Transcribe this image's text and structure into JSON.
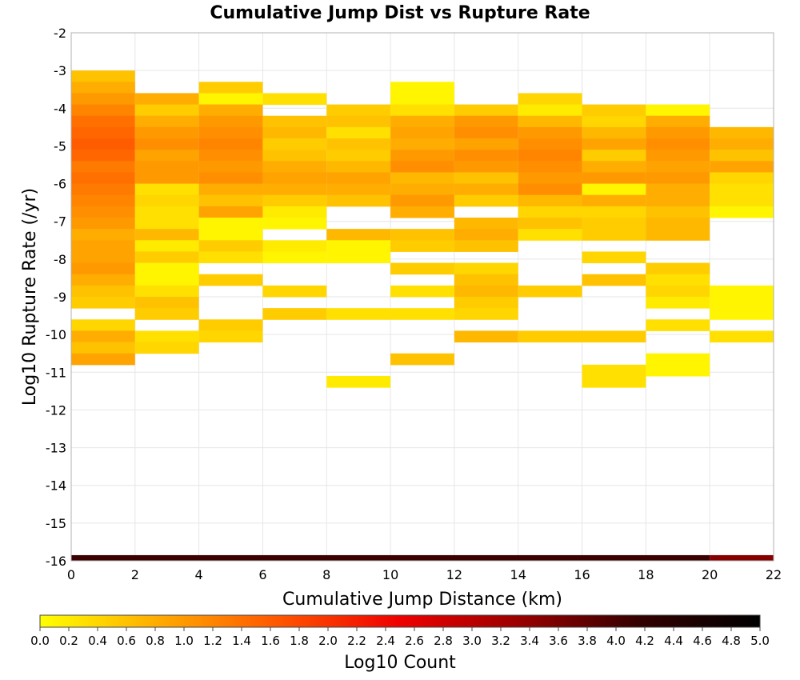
{
  "chart_data": {
    "type": "heatmap",
    "title": "Cumulative Jump Dist vs Rupture Rate",
    "xlabel": "Cumulative Jump Distance (km)",
    "ylabel": "Log10 Rupture Rate (/yr)",
    "xlim": [
      0,
      22
    ],
    "ylim": [
      -16,
      -2
    ],
    "x_ticks": [
      0,
      2,
      4,
      6,
      8,
      10,
      12,
      14,
      16,
      18,
      20,
      22
    ],
    "y_ticks": [
      -2,
      -3,
      -4,
      -5,
      -6,
      -7,
      -8,
      -9,
      -10,
      -11,
      -12,
      -13,
      -14,
      -15,
      -16
    ],
    "x_bin_width": 2,
    "y_bin_height": 0.3,
    "grid": true,
    "colorbar": {
      "label": "Log10 Count",
      "range": [
        0,
        5
      ],
      "ticks": [
        "0.0",
        "0.2",
        "0.4",
        "0.6",
        "0.8",
        "1.0",
        "1.2",
        "1.4",
        "1.6",
        "1.8",
        "2.0",
        "2.2",
        "2.4",
        "2.6",
        "2.8",
        "3.0",
        "3.2",
        "3.4",
        "3.6",
        "3.8",
        "4.0",
        "4.2",
        "4.4",
        "4.6",
        "4.8",
        "5.0"
      ],
      "palette": [
        "#ffff00",
        "#ffaa00",
        "#ff5500",
        "#ee0000",
        "#990000",
        "#330000",
        "#000000"
      ]
    },
    "columns": [
      {
        "x": 0,
        "cells": [
          [
            -3.0,
            0.6
          ],
          [
            -3.3,
            0.8
          ],
          [
            -3.6,
            1.0
          ],
          [
            -3.9,
            1.2
          ],
          [
            -4.2,
            1.4
          ],
          [
            -4.5,
            1.5
          ],
          [
            -4.8,
            1.6
          ],
          [
            -5.1,
            1.5
          ],
          [
            -5.4,
            1.3
          ],
          [
            -5.7,
            1.4
          ],
          [
            -6.0,
            1.3
          ],
          [
            -6.3,
            1.2
          ],
          [
            -6.6,
            1.1
          ],
          [
            -6.9,
            1.0
          ],
          [
            -7.2,
            0.8
          ],
          [
            -7.5,
            0.9
          ],
          [
            -7.8,
            0.9
          ],
          [
            -8.1,
            1.0
          ],
          [
            -8.4,
            0.8
          ],
          [
            -8.7,
            0.6
          ],
          [
            -9.0,
            0.5
          ],
          [
            -9.6,
            0.4
          ],
          [
            -9.9,
            0.8
          ],
          [
            -10.2,
            0.6
          ],
          [
            -10.5,
            0.9
          ]
        ]
      },
      {
        "x": 2,
        "cells": [
          [
            -3.6,
            0.8
          ],
          [
            -3.9,
            0.5
          ],
          [
            -4.2,
            0.8
          ],
          [
            -4.5,
            1.0
          ],
          [
            -4.8,
            1.1
          ],
          [
            -5.1,
            0.9
          ],
          [
            -5.4,
            1.0
          ],
          [
            -5.7,
            1.0
          ],
          [
            -6.0,
            0.3
          ],
          [
            -6.3,
            0.4
          ],
          [
            -6.6,
            0.3
          ],
          [
            -6.9,
            0.3
          ],
          [
            -7.2,
            0.7
          ],
          [
            -7.5,
            0.2
          ],
          [
            -7.8,
            0.5
          ],
          [
            -8.1,
            0.1
          ],
          [
            -8.4,
            0.1
          ],
          [
            -8.7,
            0.3
          ],
          [
            -9.0,
            0.6
          ],
          [
            -9.3,
            0.5
          ],
          [
            -9.9,
            0.3
          ],
          [
            -10.2,
            0.4
          ]
        ]
      },
      {
        "x": 4,
        "cells": [
          [
            -3.3,
            0.5
          ],
          [
            -3.6,
            0.1
          ],
          [
            -3.9,
            0.8
          ],
          [
            -4.2,
            1.0
          ],
          [
            -4.5,
            1.1
          ],
          [
            -4.8,
            1.2
          ],
          [
            -5.1,
            1.1
          ],
          [
            -5.4,
            1.0
          ],
          [
            -5.7,
            1.1
          ],
          [
            -6.0,
            0.8
          ],
          [
            -6.3,
            0.6
          ],
          [
            -6.6,
            0.9
          ],
          [
            -6.9,
            0.1
          ],
          [
            -7.2,
            0.1
          ],
          [
            -7.5,
            0.5
          ],
          [
            -7.8,
            0.3
          ],
          [
            -8.4,
            0.5
          ],
          [
            -9.6,
            0.5
          ],
          [
            -9.9,
            0.4
          ]
        ]
      },
      {
        "x": 6,
        "cells": [
          [
            -3.6,
            0.3
          ],
          [
            -4.2,
            0.6
          ],
          [
            -4.5,
            0.7
          ],
          [
            -4.8,
            0.5
          ],
          [
            -5.1,
            0.6
          ],
          [
            -5.4,
            0.8
          ],
          [
            -5.7,
            0.9
          ],
          [
            -6.0,
            0.8
          ],
          [
            -6.3,
            0.5
          ],
          [
            -6.6,
            0.2
          ],
          [
            -6.9,
            0.1
          ],
          [
            -7.5,
            0.2
          ],
          [
            -7.8,
            0.1
          ],
          [
            -8.7,
            0.4
          ],
          [
            -9.3,
            0.5
          ]
        ]
      },
      {
        "x": 8,
        "cells": [
          [
            -3.9,
            0.5
          ],
          [
            -4.2,
            0.6
          ],
          [
            -4.5,
            0.3
          ],
          [
            -4.8,
            0.6
          ],
          [
            -5.1,
            0.5
          ],
          [
            -5.4,
            0.7
          ],
          [
            -5.7,
            0.9
          ],
          [
            -6.0,
            0.8
          ],
          [
            -6.3,
            0.6
          ],
          [
            -7.2,
            0.7
          ],
          [
            -7.5,
            0.1
          ],
          [
            -7.8,
            0.1
          ],
          [
            -9.3,
            0.3
          ],
          [
            -11.1,
            0.2
          ]
        ]
      },
      {
        "x": 10,
        "cells": [
          [
            -3.3,
            0.1
          ],
          [
            -3.6,
            0.1
          ],
          [
            -3.9,
            0.3
          ],
          [
            -4.2,
            0.8
          ],
          [
            -4.5,
            0.9
          ],
          [
            -4.8,
            0.8
          ],
          [
            -5.1,
            1.0
          ],
          [
            -5.4,
            1.1
          ],
          [
            -5.7,
            0.7
          ],
          [
            -6.0,
            0.8
          ],
          [
            -6.3,
            1.0
          ],
          [
            -6.6,
            0.8
          ],
          [
            -7.2,
            0.6
          ],
          [
            -7.5,
            0.5
          ],
          [
            -8.1,
            0.5
          ],
          [
            -8.7,
            0.3
          ],
          [
            -9.3,
            0.3
          ],
          [
            -10.5,
            0.6
          ]
        ]
      },
      {
        "x": 12,
        "cells": [
          [
            -3.9,
            0.5
          ],
          [
            -4.2,
            1.0
          ],
          [
            -4.5,
            1.1
          ],
          [
            -4.8,
            0.9
          ],
          [
            -5.1,
            1.1
          ],
          [
            -5.4,
            1.0
          ],
          [
            -5.7,
            0.6
          ],
          [
            -6.0,
            0.8
          ],
          [
            -6.3,
            0.5
          ],
          [
            -6.9,
            0.7
          ],
          [
            -7.2,
            0.8
          ],
          [
            -7.5,
            0.6
          ],
          [
            -8.1,
            0.4
          ],
          [
            -8.4,
            0.6
          ],
          [
            -8.7,
            0.7
          ],
          [
            -9.0,
            0.5
          ],
          [
            -9.3,
            0.4
          ],
          [
            -9.9,
            0.7
          ]
        ]
      },
      {
        "x": 14,
        "cells": [
          [
            -3.6,
            0.4
          ],
          [
            -3.9,
            0.2
          ],
          [
            -4.2,
            0.7
          ],
          [
            -4.5,
            1.0
          ],
          [
            -4.8,
            1.1
          ],
          [
            -5.1,
            1.2
          ],
          [
            -5.4,
            1.1
          ],
          [
            -5.7,
            1.0
          ],
          [
            -6.0,
            1.1
          ],
          [
            -6.3,
            0.7
          ],
          [
            -6.6,
            0.4
          ],
          [
            -6.9,
            0.6
          ],
          [
            -7.2,
            0.3
          ],
          [
            -8.7,
            0.5
          ],
          [
            -9.9,
            0.5
          ]
        ]
      },
      {
        "x": 16,
        "cells": [
          [
            -3.9,
            0.5
          ],
          [
            -4.2,
            0.4
          ],
          [
            -4.5,
            0.7
          ],
          [
            -4.8,
            0.9
          ],
          [
            -5.1,
            0.5
          ],
          [
            -5.4,
            0.8
          ],
          [
            -5.7,
            1.0
          ],
          [
            -6.0,
            0.1
          ],
          [
            -6.3,
            0.8
          ],
          [
            -6.6,
            0.4
          ],
          [
            -6.9,
            0.5
          ],
          [
            -7.2,
            0.5
          ],
          [
            -7.8,
            0.4
          ],
          [
            -8.4,
            0.6
          ],
          [
            -9.9,
            0.5
          ],
          [
            -10.8,
            0.3
          ],
          [
            -11.1,
            0.3
          ]
        ]
      },
      {
        "x": 18,
        "cells": [
          [
            -3.9,
            0.1
          ],
          [
            -4.2,
            0.8
          ],
          [
            -4.5,
            1.0
          ],
          [
            -4.8,
            1.1
          ],
          [
            -5.1,
            1.0
          ],
          [
            -5.4,
            0.9
          ],
          [
            -5.7,
            1.0
          ],
          [
            -6.0,
            0.8
          ],
          [
            -6.3,
            0.8
          ],
          [
            -6.6,
            0.6
          ],
          [
            -6.9,
            0.7
          ],
          [
            -7.2,
            0.7
          ],
          [
            -8.1,
            0.5
          ],
          [
            -8.4,
            0.3
          ],
          [
            -8.7,
            0.4
          ],
          [
            -9.0,
            0.2
          ],
          [
            -9.6,
            0.3
          ],
          [
            -10.5,
            0.1
          ],
          [
            -10.8,
            0.1
          ]
        ]
      },
      {
        "x": 20,
        "cells": [
          [
            -4.5,
            0.7
          ],
          [
            -4.8,
            0.8
          ],
          [
            -5.1,
            0.6
          ],
          [
            -5.4,
            0.9
          ],
          [
            -5.7,
            0.4
          ],
          [
            -6.0,
            0.3
          ],
          [
            -6.3,
            0.3
          ],
          [
            -6.6,
            0.1
          ],
          [
            -8.7,
            0.1
          ],
          [
            -9.0,
            0.1
          ],
          [
            -9.3,
            0.1
          ],
          [
            -9.9,
            0.3
          ]
        ]
      }
    ],
    "bottom_band": {
      "y": -16,
      "x_ranges": [
        [
          0,
          20,
          4.1
        ],
        [
          20,
          22,
          3.5
        ]
      ]
    }
  }
}
